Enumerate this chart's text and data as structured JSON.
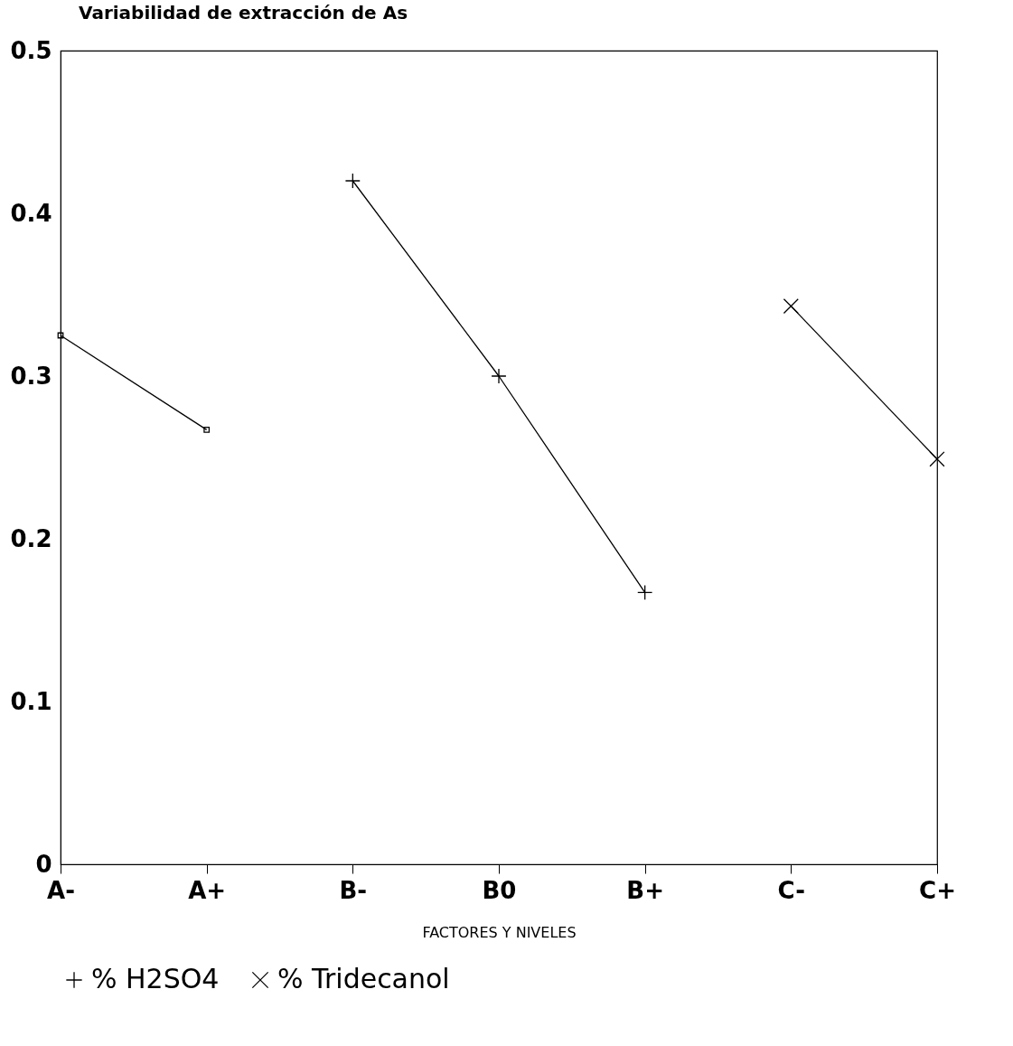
{
  "chart_data": {
    "type": "line",
    "title": "Variabilidad de extracción de As",
    "xlabel": "FACTORES Y NIVELES",
    "categories": [
      "A-",
      "A+",
      "B-",
      "B0",
      "B+",
      "C-",
      "C+"
    ],
    "series": [
      {
        "color": "#000000",
        "marker": "square",
        "values": [
          0.325,
          0.267,
          null,
          null,
          null,
          null,
          null
        ]
      },
      {
        "name": "% H2SO4",
        "color": "#000000",
        "marker": "cross",
        "values": [
          null,
          null,
          0.42,
          0.3,
          0.167,
          null,
          null
        ]
      },
      {
        "name": "% Tridecanol",
        "color": "#000000",
        "marker": "x",
        "values": [
          null,
          null,
          null,
          null,
          null,
          0.343,
          0.249
        ]
      }
    ],
    "ylim": [
      0,
      0.5
    ],
    "yticks": [
      0,
      0.1,
      0.2,
      0.3,
      0.4,
      0.5
    ],
    "grid": false,
    "legend": "bottom",
    "line_style": "solid"
  }
}
